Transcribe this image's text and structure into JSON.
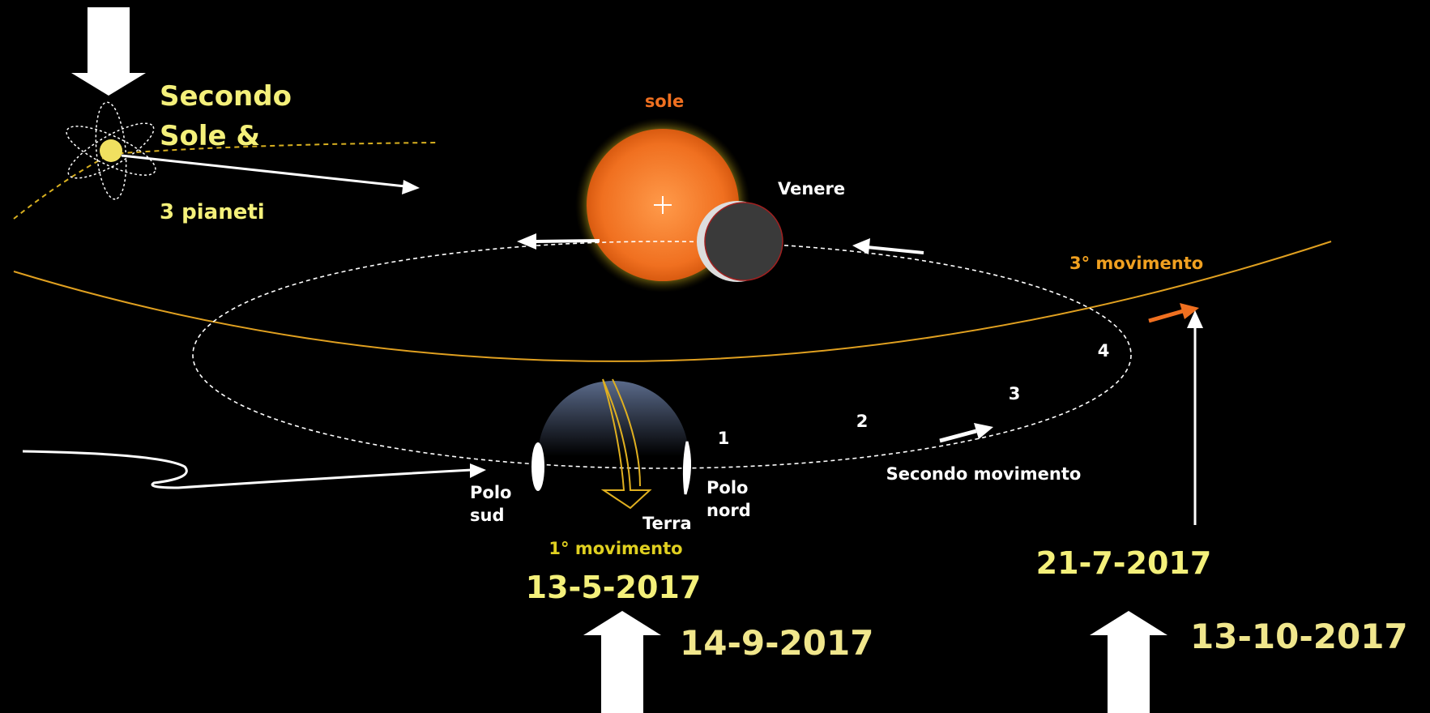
{
  "header": {
    "second_sun": [
      "Secondo",
      "Sole &"
    ],
    "planets": "3 pianeti"
  },
  "bodies": {
    "sun": "sole",
    "venus": "Venere",
    "earth": "Terra"
  },
  "poles": {
    "south": [
      "Polo",
      "sud"
    ],
    "north": [
      "Polo",
      "nord"
    ]
  },
  "movements": {
    "first": "1° movimento",
    "second": "Secondo movimento",
    "third": "3° movimento"
  },
  "steps": [
    "1",
    "2",
    "3",
    "4"
  ],
  "dates": {
    "earth": "13-5-2017",
    "orbit": "21-7-2017",
    "earth_arrow": "14-9-2017",
    "orbit_arrow": "13-10-2017"
  }
}
